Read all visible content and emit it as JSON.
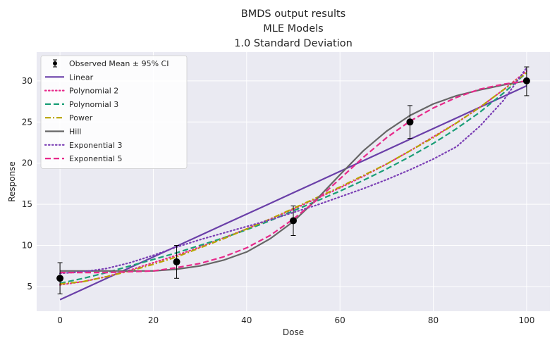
{
  "chart_data": {
    "type": "line",
    "title": [
      "BMDS output results",
      "MLE Models",
      "1.0 Standard Deviation"
    ],
    "xlabel": "Dose",
    "ylabel": "Response",
    "xlim": [
      -5,
      105
    ],
    "ylim": [
      2,
      33.5
    ],
    "xticks": [
      0,
      20,
      40,
      60,
      80,
      100
    ],
    "yticks": [
      5,
      10,
      15,
      20,
      25,
      30
    ],
    "grid": true,
    "legend_position": "top-left",
    "observed": {
      "name": "Observed Mean ± 95% CI",
      "color": "#000000",
      "points": [
        {
          "x": 0,
          "y": 6.0,
          "lo": 4.1,
          "hi": 7.9
        },
        {
          "x": 25,
          "y": 8.0,
          "lo": 6.0,
          "hi": 10.0
        },
        {
          "x": 50,
          "y": 13.0,
          "lo": 11.2,
          "hi": 14.8
        },
        {
          "x": 75,
          "y": 25.0,
          "lo": 23.0,
          "hi": 27.0
        },
        {
          "x": 100,
          "y": 30.0,
          "lo": 28.2,
          "hi": 31.7
        }
      ]
    },
    "x": [
      0,
      5,
      10,
      15,
      20,
      25,
      30,
      35,
      40,
      45,
      50,
      55,
      60,
      65,
      70,
      75,
      80,
      85,
      90,
      95,
      100
    ],
    "series": [
      {
        "name": "Linear",
        "color": "#6a3fa8",
        "dash": "solid",
        "values": [
          3.4,
          4.7,
          6.0,
          7.3,
          8.6,
          9.9,
          11.2,
          12.5,
          13.8,
          15.1,
          16.4,
          17.7,
          19.0,
          20.3,
          21.6,
          22.9,
          24.2,
          25.5,
          26.8,
          28.1,
          29.4
        ]
      },
      {
        "name": "Polynomial 2",
        "color": "#e7298a",
        "dash": "dotted",
        "values": [
          5.2,
          5.6,
          6.2,
          7.0,
          7.9,
          8.8,
          9.8,
          10.9,
          12.0,
          13.2,
          14.4,
          15.7,
          17.0,
          18.4,
          19.9,
          21.5,
          23.2,
          24.9,
          26.8,
          28.9,
          31.2
        ]
      },
      {
        "name": "Polynomial 3",
        "color": "#1b9e77",
        "dash": "dashed",
        "values": [
          5.4,
          6.0,
          6.7,
          7.5,
          8.3,
          9.1,
          10.0,
          10.9,
          11.9,
          13.0,
          14.2,
          15.4,
          16.6,
          17.9,
          19.3,
          20.8,
          22.4,
          24.2,
          26.2,
          28.5,
          31.0
        ]
      },
      {
        "name": "Power",
        "color": "#b8a300",
        "dash": "dashdot",
        "values": [
          5.3,
          5.6,
          6.2,
          6.9,
          7.7,
          8.6,
          9.7,
          10.8,
          12.0,
          13.2,
          14.5,
          15.8,
          17.1,
          18.5,
          19.9,
          21.5,
          23.1,
          24.9,
          26.8,
          28.9,
          31.0
        ]
      },
      {
        "name": "Hill",
        "color": "#666666",
        "dash": "solid",
        "values": [
          6.9,
          6.9,
          6.9,
          6.9,
          6.9,
          7.1,
          7.5,
          8.2,
          9.2,
          10.8,
          12.9,
          15.6,
          18.6,
          21.5,
          23.9,
          25.8,
          27.2,
          28.2,
          28.9,
          29.5,
          30.0
        ]
      },
      {
        "name": "Exponential 3",
        "color": "#7b3fb5",
        "dash": "dotted",
        "values": [
          6.6,
          6.8,
          7.2,
          7.9,
          8.8,
          9.8,
          10.7,
          11.5,
          12.3,
          13.1,
          14.0,
          14.9,
          15.9,
          16.9,
          18.0,
          19.2,
          20.5,
          22.0,
          24.5,
          27.6,
          31.6
        ]
      },
      {
        "name": "Exponential 5",
        "color": "#e7298a",
        "dash": "dashed",
        "values": [
          6.7,
          6.7,
          6.7,
          6.8,
          6.9,
          7.3,
          7.8,
          8.6,
          9.7,
          11.2,
          13.2,
          15.5,
          18.1,
          20.7,
          23.1,
          25.1,
          26.7,
          28.0,
          29.0,
          29.6,
          30.0
        ]
      }
    ]
  }
}
